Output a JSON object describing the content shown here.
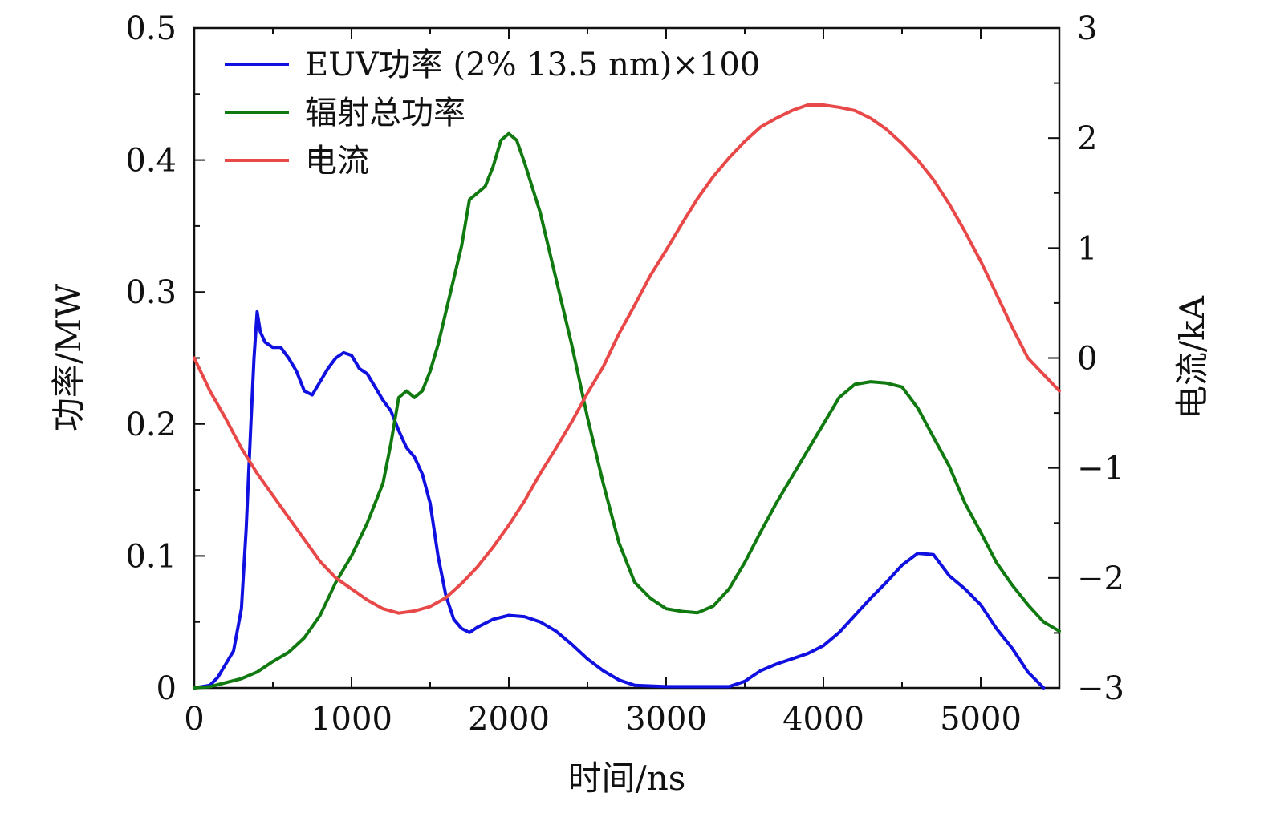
{
  "chart_data": {
    "type": "line",
    "title": "",
    "xlabel": "时间/ns",
    "ylabel_left": "功率/MW",
    "ylabel_right": "电流/kA",
    "xlim": [
      0,
      5500
    ],
    "ylim_left": [
      0,
      0.5
    ],
    "ylim_right": [
      -3,
      3
    ],
    "x_ticks": [
      0,
      1000,
      2000,
      3000,
      4000,
      5000
    ],
    "x_tick_labels": [
      "0",
      "1000",
      "2000",
      "3000",
      "4000",
      "5000"
    ],
    "y_left_ticks": [
      0,
      0.1,
      0.2,
      0.3,
      0.4,
      0.5
    ],
    "y_left_tick_labels": [
      "0",
      "0.1",
      "0.2",
      "0.3",
      "0.4",
      "0.5"
    ],
    "y_right_ticks": [
      -3,
      -2,
      -1,
      0,
      1,
      2,
      3
    ],
    "y_right_tick_labels": [
      "−3",
      "−2",
      "−1",
      "0",
      "1",
      "2",
      "3"
    ],
    "grid": false,
    "legend_position": "top-left",
    "series": [
      {
        "name": "EUV功率 (2% 13.5 nm)×100",
        "color": "#1010e0",
        "axis": "left",
        "points": [
          [
            0,
            0
          ],
          [
            100,
            0.002
          ],
          [
            150,
            0.008
          ],
          [
            200,
            0.018
          ],
          [
            250,
            0.028
          ],
          [
            300,
            0.06
          ],
          [
            330,
            0.12
          ],
          [
            360,
            0.2
          ],
          [
            380,
            0.25
          ],
          [
            400,
            0.285
          ],
          [
            420,
            0.27
          ],
          [
            450,
            0.262
          ],
          [
            500,
            0.258
          ],
          [
            550,
            0.258
          ],
          [
            600,
            0.25
          ],
          [
            650,
            0.24
          ],
          [
            700,
            0.225
          ],
          [
            750,
            0.222
          ],
          [
            800,
            0.232
          ],
          [
            850,
            0.242
          ],
          [
            900,
            0.25
          ],
          [
            950,
            0.254
          ],
          [
            1000,
            0.252
          ],
          [
            1050,
            0.242
          ],
          [
            1100,
            0.238
          ],
          [
            1150,
            0.228
          ],
          [
            1200,
            0.218
          ],
          [
            1250,
            0.21
          ],
          [
            1300,
            0.195
          ],
          [
            1350,
            0.182
          ],
          [
            1400,
            0.175
          ],
          [
            1450,
            0.162
          ],
          [
            1500,
            0.14
          ],
          [
            1550,
            0.1
          ],
          [
            1600,
            0.07
          ],
          [
            1650,
            0.052
          ],
          [
            1700,
            0.045
          ],
          [
            1750,
            0.042
          ],
          [
            1800,
            0.046
          ],
          [
            1900,
            0.052
          ],
          [
            2000,
            0.055
          ],
          [
            2100,
            0.054
          ],
          [
            2200,
            0.05
          ],
          [
            2300,
            0.043
          ],
          [
            2400,
            0.033
          ],
          [
            2500,
            0.022
          ],
          [
            2600,
            0.013
          ],
          [
            2700,
            0.006
          ],
          [
            2800,
            0.002
          ],
          [
            3000,
            0.001
          ],
          [
            3200,
            0.001
          ],
          [
            3400,
            0.001
          ],
          [
            3500,
            0.005
          ],
          [
            3600,
            0.013
          ],
          [
            3700,
            0.018
          ],
          [
            3800,
            0.022
          ],
          [
            3900,
            0.026
          ],
          [
            4000,
            0.032
          ],
          [
            4100,
            0.042
          ],
          [
            4200,
            0.055
          ],
          [
            4300,
            0.068
          ],
          [
            4400,
            0.08
          ],
          [
            4500,
            0.093
          ],
          [
            4600,
            0.102
          ],
          [
            4700,
            0.101
          ],
          [
            4800,
            0.085
          ],
          [
            4900,
            0.075
          ],
          [
            5000,
            0.063
          ],
          [
            5100,
            0.045
          ],
          [
            5200,
            0.03
          ],
          [
            5300,
            0.012
          ],
          [
            5400,
            0
          ]
        ]
      },
      {
        "name": "辐射总功率",
        "color": "#107a10",
        "axis": "left",
        "points": [
          [
            0,
            0
          ],
          [
            100,
            0.001
          ],
          [
            200,
            0.004
          ],
          [
            300,
            0.007
          ],
          [
            400,
            0.012
          ],
          [
            500,
            0.02
          ],
          [
            600,
            0.027
          ],
          [
            700,
            0.038
          ],
          [
            800,
            0.055
          ],
          [
            900,
            0.08
          ],
          [
            1000,
            0.1
          ],
          [
            1100,
            0.125
          ],
          [
            1200,
            0.155
          ],
          [
            1250,
            0.185
          ],
          [
            1300,
            0.22
          ],
          [
            1350,
            0.225
          ],
          [
            1400,
            0.22
          ],
          [
            1450,
            0.225
          ],
          [
            1500,
            0.24
          ],
          [
            1550,
            0.26
          ],
          [
            1600,
            0.285
          ],
          [
            1650,
            0.31
          ],
          [
            1700,
            0.335
          ],
          [
            1750,
            0.37
          ],
          [
            1800,
            0.375
          ],
          [
            1850,
            0.38
          ],
          [
            1900,
            0.395
          ],
          [
            1950,
            0.415
          ],
          [
            2000,
            0.42
          ],
          [
            2050,
            0.415
          ],
          [
            2100,
            0.398
          ],
          [
            2200,
            0.36
          ],
          [
            2300,
            0.31
          ],
          [
            2400,
            0.26
          ],
          [
            2500,
            0.205
          ],
          [
            2600,
            0.155
          ],
          [
            2700,
            0.11
          ],
          [
            2800,
            0.08
          ],
          [
            2900,
            0.068
          ],
          [
            3000,
            0.06
          ],
          [
            3100,
            0.058
          ],
          [
            3200,
            0.057
          ],
          [
            3300,
            0.062
          ],
          [
            3400,
            0.075
          ],
          [
            3500,
            0.095
          ],
          [
            3600,
            0.118
          ],
          [
            3700,
            0.14
          ],
          [
            3800,
            0.16
          ],
          [
            3900,
            0.18
          ],
          [
            4000,
            0.2
          ],
          [
            4100,
            0.22
          ],
          [
            4200,
            0.23
          ],
          [
            4300,
            0.232
          ],
          [
            4400,
            0.231
          ],
          [
            4500,
            0.228
          ],
          [
            4600,
            0.212
          ],
          [
            4700,
            0.19
          ],
          [
            4800,
            0.168
          ],
          [
            4900,
            0.14
          ],
          [
            5000,
            0.118
          ],
          [
            5100,
            0.095
          ],
          [
            5200,
            0.078
          ],
          [
            5300,
            0.063
          ],
          [
            5400,
            0.05
          ],
          [
            5500,
            0.043
          ]
        ]
      },
      {
        "name": "电流",
        "color": "#e84848",
        "axis": "right",
        "points": [
          [
            0,
            0
          ],
          [
            100,
            -0.3
          ],
          [
            200,
            -0.55
          ],
          [
            300,
            -0.82
          ],
          [
            400,
            -1.05
          ],
          [
            500,
            -1.25
          ],
          [
            600,
            -1.45
          ],
          [
            700,
            -1.65
          ],
          [
            800,
            -1.85
          ],
          [
            900,
            -2.0
          ],
          [
            1000,
            -2.1
          ],
          [
            1100,
            -2.2
          ],
          [
            1200,
            -2.28
          ],
          [
            1300,
            -2.32
          ],
          [
            1400,
            -2.3
          ],
          [
            1500,
            -2.26
          ],
          [
            1600,
            -2.18
          ],
          [
            1700,
            -2.05
          ],
          [
            1800,
            -1.9
          ],
          [
            1900,
            -1.72
          ],
          [
            2000,
            -1.52
          ],
          [
            2100,
            -1.3
          ],
          [
            2200,
            -1.05
          ],
          [
            2300,
            -0.82
          ],
          [
            2400,
            -0.58
          ],
          [
            2500,
            -0.32
          ],
          [
            2600,
            -0.08
          ],
          [
            2700,
            0.22
          ],
          [
            2800,
            0.48
          ],
          [
            2900,
            0.75
          ],
          [
            3000,
            0.98
          ],
          [
            3100,
            1.22
          ],
          [
            3200,
            1.45
          ],
          [
            3300,
            1.65
          ],
          [
            3400,
            1.82
          ],
          [
            3500,
            1.97
          ],
          [
            3600,
            2.1
          ],
          [
            3700,
            2.18
          ],
          [
            3800,
            2.25
          ],
          [
            3900,
            2.3
          ],
          [
            4000,
            2.3
          ],
          [
            4100,
            2.28
          ],
          [
            4200,
            2.25
          ],
          [
            4300,
            2.18
          ],
          [
            4400,
            2.08
          ],
          [
            4500,
            1.95
          ],
          [
            4600,
            1.8
          ],
          [
            4700,
            1.62
          ],
          [
            4800,
            1.4
          ],
          [
            4900,
            1.15
          ],
          [
            5000,
            0.88
          ],
          [
            5100,
            0.58
          ],
          [
            5200,
            0.28
          ],
          [
            5300,
            0.0
          ],
          [
            5400,
            -0.15
          ],
          [
            5500,
            -0.3
          ]
        ]
      }
    ]
  }
}
